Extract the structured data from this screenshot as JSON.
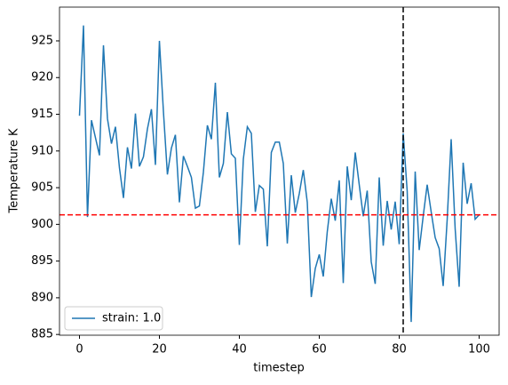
{
  "chart_data": {
    "type": "line",
    "x_label": "timestep",
    "y_label": "Temperature K",
    "x": [
      0,
      1,
      2,
      3,
      4,
      5,
      6,
      7,
      8,
      9,
      10,
      11,
      12,
      13,
      14,
      15,
      16,
      17,
      18,
      19,
      20,
      21,
      22,
      23,
      24,
      25,
      26,
      27,
      28,
      29,
      30,
      31,
      32,
      33,
      34,
      35,
      36,
      37,
      38,
      39,
      40,
      41,
      42,
      43,
      44,
      45,
      46,
      47,
      48,
      49,
      50,
      51,
      52,
      53,
      54,
      55,
      56,
      57,
      58,
      59,
      60,
      61,
      62,
      63,
      64,
      65,
      66,
      67,
      68,
      69,
      70,
      71,
      72,
      73,
      74,
      75,
      76,
      77,
      78,
      79,
      80,
      81,
      82,
      83,
      84,
      85,
      86,
      87,
      88,
      89,
      90,
      91,
      92,
      93,
      94,
      95,
      96,
      97,
      98,
      99,
      100
    ],
    "series": [
      {
        "name": "strain: 1.0",
        "color": "#1f77b4",
        "values": [
          914.8,
          927.1,
          901.0,
          914.2,
          911.8,
          909.4,
          924.4,
          914.4,
          911.0,
          913.3,
          907.7,
          903.6,
          910.5,
          907.6,
          915.1,
          907.9,
          909.2,
          913.0,
          915.7,
          908.1,
          925.0,
          915.4,
          906.8,
          910.4,
          912.2,
          903.0,
          909.3,
          907.9,
          906.4,
          902.2,
          902.5,
          907.1,
          913.5,
          911.6,
          919.3,
          906.4,
          908.3,
          915.3,
          909.6,
          909.0,
          897.2,
          908.9,
          913.3,
          912.4,
          901.7,
          905.3,
          904.8,
          897.0,
          909.8,
          911.2,
          911.2,
          908.3,
          897.4,
          906.7,
          901.6,
          904.2,
          907.4,
          903.0,
          890.1,
          894.0,
          895.9,
          892.9,
          899.0,
          903.5,
          900.5,
          906.0,
          892.0,
          907.9,
          903.3,
          909.8,
          905.4,
          901.1,
          904.6,
          894.9,
          891.9,
          906.4,
          897.1,
          903.2,
          899.3,
          903.1,
          897.3,
          912.4,
          904.5,
          886.7,
          907.2,
          896.5,
          901.1,
          905.4,
          901.7,
          898.2,
          896.7,
          891.6,
          900.6,
          911.6,
          899.4,
          891.5,
          908.4,
          902.8,
          905.6,
          900.7,
          901.3
        ]
      }
    ],
    "hline": {
      "y": 901.3,
      "color": "#ff0000"
    },
    "vline": {
      "x": 81,
      "color": "#000000"
    },
    "xlim": [
      -5,
      105
    ],
    "ylim": [
      884.9,
      929.6
    ],
    "xticks": [
      0,
      20,
      40,
      60,
      80,
      100
    ],
    "yticks": [
      885,
      890,
      895,
      900,
      905,
      910,
      915,
      920,
      925
    ],
    "legend": "lower left"
  }
}
